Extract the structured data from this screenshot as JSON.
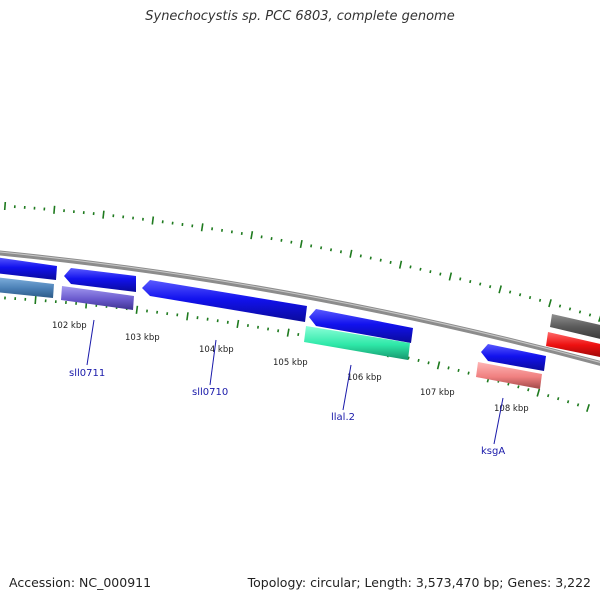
{
  "title": "Synechocystis sp. PCC 6803, complete genome",
  "footer": {
    "accession": "Accession: NC_000911",
    "topology": "Topology: circular;",
    "length": "Length: 3,573,470 bp;",
    "genes": "Genes: 3,222"
  },
  "colors": {
    "backbone": "#8c8c8c",
    "tick": "#1e7a1e",
    "label": "#1a1aaa"
  },
  "ruler": [
    {
      "label": "102 kbp",
      "kbp": 102
    },
    {
      "label": "103 kbp",
      "kbp": 103
    },
    {
      "label": "104 kbp",
      "kbp": 104
    },
    {
      "label": "105 kbp",
      "kbp": 105
    },
    {
      "label": "106 kbp",
      "kbp": 106
    },
    {
      "label": "107 kbp",
      "kbp": 107
    },
    {
      "label": "108 kbp",
      "kbp": 108
    }
  ],
  "genes": [
    {
      "name": "sll0711",
      "label": "sll0711",
      "strand": "-",
      "color": "#1515e6"
    },
    {
      "name": "sll0710",
      "label": "sll0710",
      "strand": "-",
      "color": "#1515e6"
    },
    {
      "name": "llal.2",
      "label": "llal.2",
      "strand": "-",
      "color": "#1515e6"
    },
    {
      "name": "ksgA",
      "label": "ksgA",
      "strand": "-",
      "color": "#1515e6"
    },
    {
      "name": "left-edge-gene",
      "label": "",
      "strand": "+",
      "color": "#1515e6"
    },
    {
      "name": "right-edge-gene",
      "label": "",
      "strand": "+",
      "color": "#555555"
    }
  ],
  "features": [
    {
      "name": "left-edge-feature",
      "color": "#4a7fb5"
    },
    {
      "name": "sll0711-feature",
      "color": "#6a5acd"
    },
    {
      "name": "llal.2-feature",
      "color": "#2ee8a8"
    },
    {
      "name": "ksgA-feature",
      "color": "#f08080"
    },
    {
      "name": "right-edge-feature",
      "color": "#ee1111"
    }
  ]
}
